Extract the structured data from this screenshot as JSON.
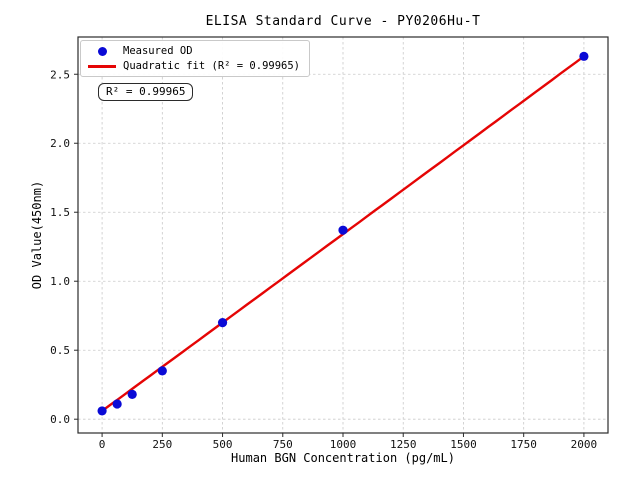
{
  "chart_data": {
    "type": "scatter",
    "title": "ELISA Standard Curve - PY0206Hu-T",
    "xlabel": "Human BGN Concentration (pg/mL)",
    "ylabel": "OD Value(450nm)",
    "x": [
      0,
      62.5,
      125,
      250,
      500,
      1000,
      2000
    ],
    "series": [
      {
        "name": "Measured OD",
        "type": "scatter",
        "marker": "circle",
        "color": "#0a0ad6",
        "values": [
          0.06,
          0.11,
          0.18,
          0.35,
          0.7,
          1.37,
          2.63
        ]
      },
      {
        "name": "Quadratic fit (R² = 0.99965)",
        "type": "line",
        "fit": "quadratic",
        "r_squared": 0.99965,
        "color": "#e50505"
      }
    ],
    "x_ticks": [
      0,
      250,
      500,
      750,
      1000,
      1250,
      1500,
      1750,
      2000
    ],
    "y_ticks": [
      0.0,
      0.5,
      1.0,
      1.5,
      2.0,
      2.5
    ],
    "xlim": [
      -100,
      2100
    ],
    "ylim": [
      -0.1,
      2.77
    ],
    "grid": true,
    "grid_color": "#c9c9c9",
    "axis_color": "#2b2b2b",
    "tick_label_color": "#111111",
    "legend_position": "upper left",
    "annotation": "R² = 0.99965"
  }
}
